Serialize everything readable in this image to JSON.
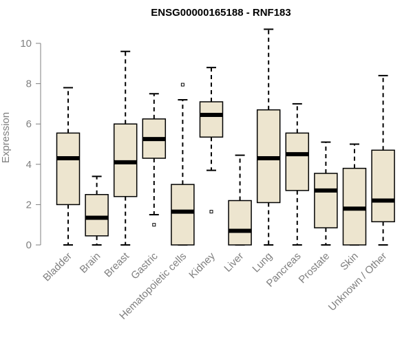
{
  "chart_data": {
    "type": "box",
    "title": "ENSG00000165188 - RNF183",
    "xlabel": "",
    "ylabel": "Expression",
    "ylim": [
      0,
      10.8
    ],
    "yticks": [
      0,
      2,
      4,
      6,
      8,
      10
    ],
    "grid": false,
    "legend": "none",
    "box_color": "#ede5cf",
    "categories": [
      "Bladder",
      "Brain",
      "Breast",
      "Gastric",
      "Hematopoietic cells",
      "Kidney",
      "Liver",
      "Lung",
      "Pancreas",
      "Prostate",
      "Skin",
      "Unknown / Other"
    ],
    "series": [
      {
        "whisker_low": 0,
        "q1": 2.0,
        "median": 4.3,
        "q3": 5.55,
        "whisker_high": 7.8,
        "outliers": []
      },
      {
        "whisker_low": 0,
        "q1": 0.45,
        "median": 1.35,
        "q3": 2.5,
        "whisker_high": 3.4,
        "outliers": []
      },
      {
        "whisker_low": 0,
        "q1": 2.4,
        "median": 4.1,
        "q3": 6.0,
        "whisker_high": 9.6,
        "outliers": []
      },
      {
        "whisker_low": 1.5,
        "q1": 4.3,
        "median": 5.25,
        "q3": 6.25,
        "whisker_high": 7.5,
        "outliers": [
          1.0
        ]
      },
      {
        "whisker_low": 0,
        "q1": 0,
        "median": 1.65,
        "q3": 3.0,
        "whisker_high": 7.2,
        "outliers": [
          7.95
        ]
      },
      {
        "whisker_low": 3.7,
        "q1": 5.35,
        "median": 6.45,
        "q3": 7.1,
        "whisker_high": 8.8,
        "outliers": [
          1.65
        ]
      },
      {
        "whisker_low": 0,
        "q1": 0,
        "median": 0.7,
        "q3": 2.2,
        "whisker_high": 4.45,
        "outliers": []
      },
      {
        "whisker_low": 0,
        "q1": 2.1,
        "median": 4.3,
        "q3": 6.7,
        "whisker_high": 10.7,
        "outliers": []
      },
      {
        "whisker_low": 0,
        "q1": 2.7,
        "median": 4.5,
        "q3": 5.55,
        "whisker_high": 7.0,
        "outliers": []
      },
      {
        "whisker_low": 0,
        "q1": 0.85,
        "median": 2.7,
        "q3": 3.55,
        "whisker_high": 5.1,
        "outliers": []
      },
      {
        "whisker_low": 0,
        "q1": 0,
        "median": 1.8,
        "q3": 3.8,
        "whisker_high": 5.0,
        "outliers": []
      },
      {
        "whisker_low": 0,
        "q1": 1.15,
        "median": 2.2,
        "q3": 4.7,
        "whisker_high": 8.4,
        "outliers": []
      }
    ]
  }
}
